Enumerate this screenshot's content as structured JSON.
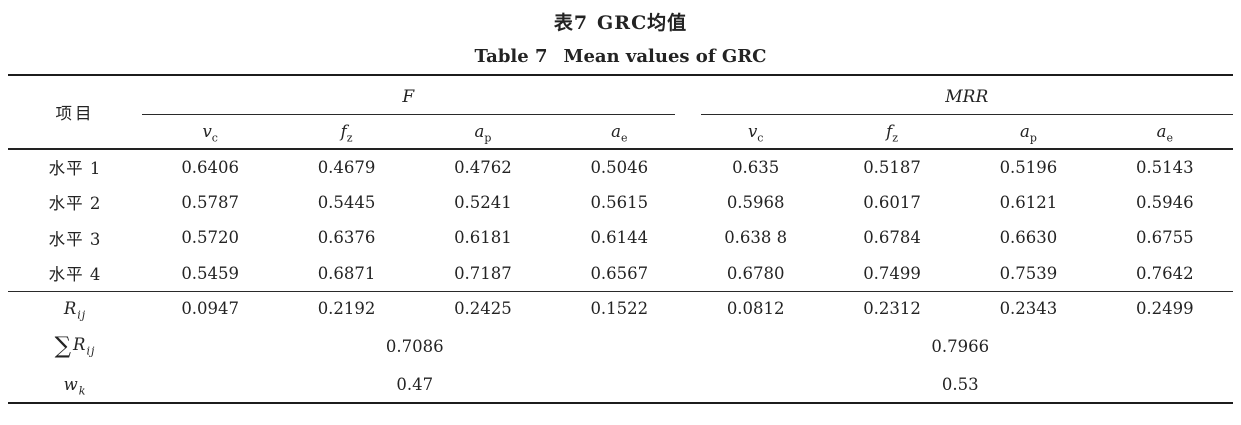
{
  "header": {
    "title_zh_prefix": "表7",
    "title_zh": "GRC均值",
    "title_en_prefix": "Table 7",
    "title_en": "Mean values of GRC"
  },
  "table": {
    "item_header": "项目",
    "groups": {
      "f": "F",
      "mrr": "MRR"
    },
    "subheaders": [
      {
        "base": "v",
        "sub": "c"
      },
      {
        "base": "f",
        "sub": "z"
      },
      {
        "base": "a",
        "sub": "p"
      },
      {
        "base": "a",
        "sub": "e"
      },
      {
        "base": "v",
        "sub": "c"
      },
      {
        "base": "f",
        "sub": "z"
      },
      {
        "base": "a",
        "sub": "p"
      },
      {
        "base": "a",
        "sub": "e"
      }
    ],
    "level_rows": [
      {
        "label": "水平 1",
        "values": [
          "0.6406",
          "0.4679",
          "0.4762",
          "0.5046",
          "0.635",
          "0.5187",
          "0.5196",
          "0.5143"
        ]
      },
      {
        "label": "水平 2",
        "values": [
          "0.5787",
          "0.5445",
          "0.5241",
          "0.5615",
          "0.5968",
          "0.6017",
          "0.6121",
          "0.5946"
        ]
      },
      {
        "label": "水平 3",
        "values": [
          "0.5720",
          "0.6376",
          "0.6181",
          "0.6144",
          "0.638 8",
          "0.6784",
          "0.6630",
          "0.6755"
        ]
      },
      {
        "label": "水平 4",
        "values": [
          "0.5459",
          "0.6871",
          "0.7187",
          "0.6567",
          "0.6780",
          "0.7499",
          "0.7539",
          "0.7642"
        ]
      }
    ],
    "r_row": {
      "label_base": "R",
      "label_sub": "ij",
      "values": [
        "0.0947",
        "0.2192",
        "0.2425",
        "0.1522",
        "0.0812",
        "0.2312",
        "0.2343",
        "0.2499"
      ]
    },
    "sum_row": {
      "sigma": "∑",
      "label_base": "R",
      "label_sub": "ij",
      "f_value": "0.7086",
      "mrr_value": "0.7966"
    },
    "w_row": {
      "label_base": "w",
      "label_sub": "k",
      "f_value": "0.47",
      "mrr_value": "0.53"
    }
  }
}
